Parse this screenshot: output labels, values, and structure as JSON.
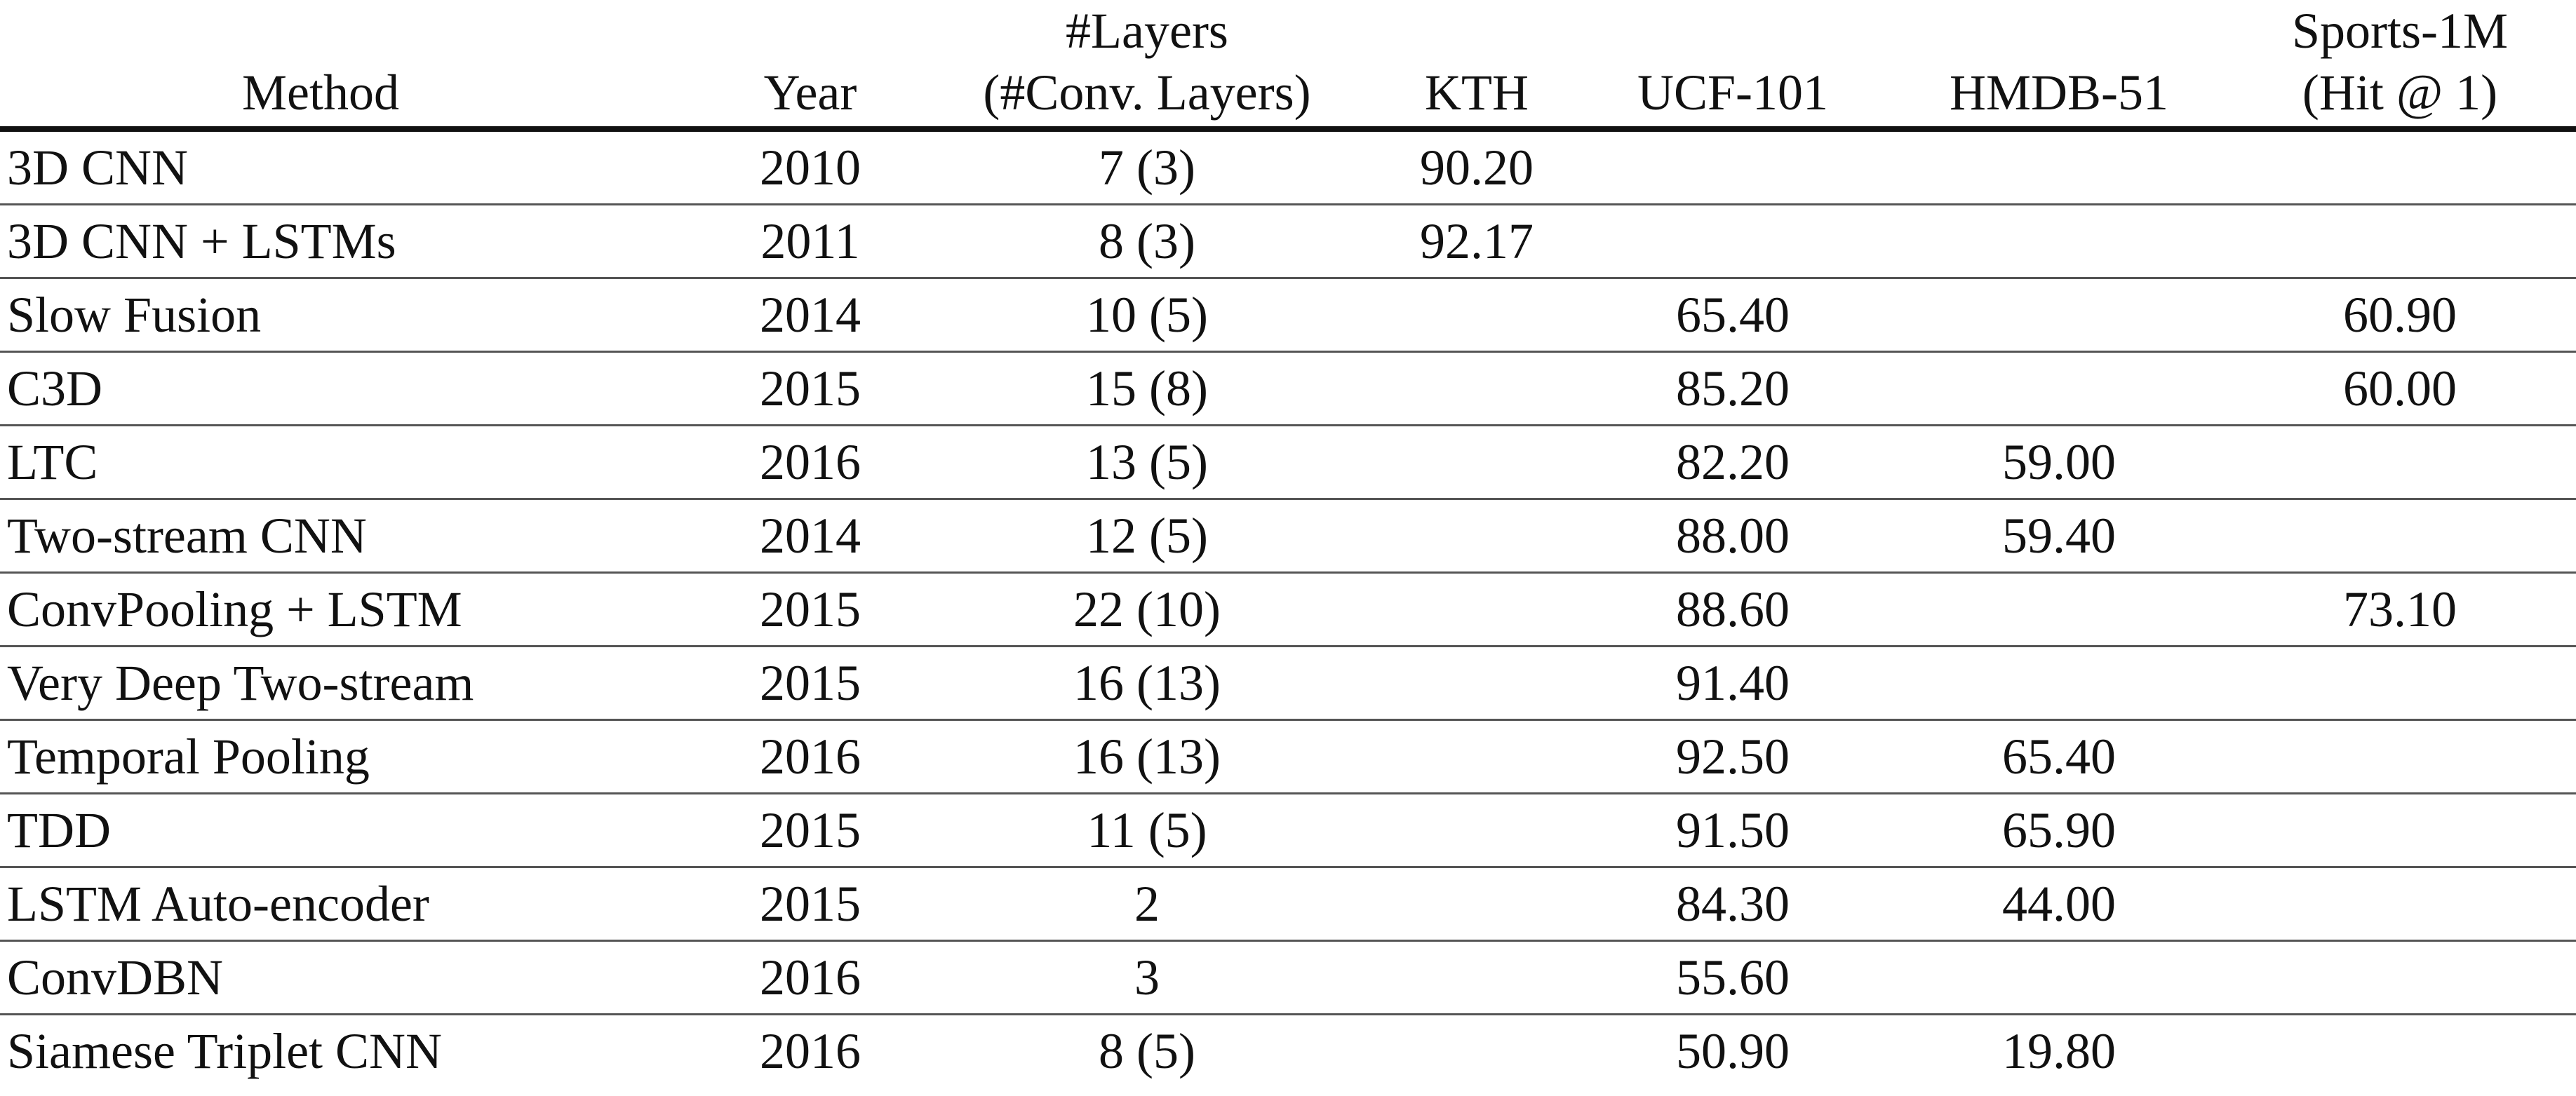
{
  "table": {
    "headers": {
      "method": "Method",
      "year": "Year",
      "layers_line1": "#Layers",
      "layers_line2": "(#Conv. Layers)",
      "kth": "KTH",
      "ucf": "UCF-101",
      "hmdb": "HMDB-51",
      "sports_line1": "Sports-1M",
      "sports_line2": "(Hit @ 1)"
    },
    "rows": [
      {
        "method": "3D CNN",
        "year": "2010",
        "layers": "7 (3)",
        "kth": "90.20",
        "ucf": "",
        "hmdb": "",
        "sports": ""
      },
      {
        "method": "3D CNN + LSTMs",
        "year": "2011",
        "layers": "8 (3)",
        "kth": "92.17",
        "ucf": "",
        "hmdb": "",
        "sports": ""
      },
      {
        "method": "Slow Fusion",
        "year": "2014",
        "layers": "10 (5)",
        "kth": "",
        "ucf": "65.40",
        "hmdb": "",
        "sports": "60.90"
      },
      {
        "method": "C3D",
        "year": "2015",
        "layers": "15 (8)",
        "kth": "",
        "ucf": "85.20",
        "hmdb": "",
        "sports": "60.00"
      },
      {
        "method": "LTC",
        "year": "2016",
        "layers": "13 (5)",
        "kth": "",
        "ucf": "82.20",
        "hmdb": "59.00",
        "sports": ""
      },
      {
        "method": "Two-stream CNN",
        "year": "2014",
        "layers": "12 (5)",
        "kth": "",
        "ucf": "88.00",
        "hmdb": "59.40",
        "sports": ""
      },
      {
        "method": "ConvPooling + LSTM",
        "year": "2015",
        "layers": "22 (10)",
        "kth": "",
        "ucf": "88.60",
        "hmdb": "",
        "sports": "73.10"
      },
      {
        "method": "Very Deep Two-stream",
        "year": "2015",
        "layers": "16 (13)",
        "kth": "",
        "ucf": "91.40",
        "hmdb": "",
        "sports": ""
      },
      {
        "method": "Temporal Pooling",
        "year": "2016",
        "layers": "16 (13)",
        "kth": "",
        "ucf": "92.50",
        "hmdb": "65.40",
        "sports": ""
      },
      {
        "method": "TDD",
        "year": "2015",
        "layers": "11 (5)",
        "kth": "",
        "ucf": "91.50",
        "hmdb": "65.90",
        "sports": ""
      },
      {
        "method": "LSTM Auto-encoder",
        "year": "2015",
        "layers": "2",
        "kth": "",
        "ucf": "84.30",
        "hmdb": "44.00",
        "sports": ""
      },
      {
        "method": "ConvDBN",
        "year": "2016",
        "layers": "3",
        "kth": "",
        "ucf": "55.60",
        "hmdb": "",
        "sports": ""
      },
      {
        "method": "Siamese Triplet CNN",
        "year": "2016",
        "layers": "8 (5)",
        "kth": "",
        "ucf": "50.90",
        "hmdb": "19.80",
        "sports": ""
      }
    ]
  }
}
